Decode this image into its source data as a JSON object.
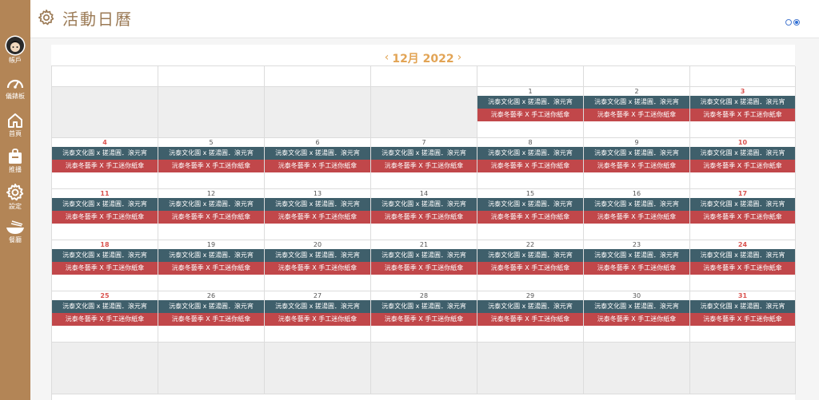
{
  "sidebar": {
    "items": [
      {
        "id": "account",
        "label": "帳戶",
        "icon": "avatar-icon"
      },
      {
        "id": "dashboard",
        "label": "儀錶板",
        "icon": "gauge-icon"
      },
      {
        "id": "home",
        "label": "首頁",
        "icon": "home-icon"
      },
      {
        "id": "promo",
        "label": "推播",
        "icon": "bag-icon"
      },
      {
        "id": "settings",
        "label": "設定",
        "icon": "gear-icon"
      },
      {
        "id": "dining",
        "label": "餐廳",
        "icon": "bowl-icon"
      }
    ]
  },
  "header": {
    "title": "活動日曆",
    "title_icon": "gear-icon",
    "view_toggle": {
      "options": [
        "view-1",
        "view-2"
      ],
      "selected": 1
    }
  },
  "calendar": {
    "month_label": "12月 2022",
    "prev_arrow": "‹",
    "next_arrow": "›",
    "weekend_color": "#d9534f",
    "event_colors": {
      "a": "#3f5f6b",
      "b": "#c1474a"
    },
    "events_per_day": [
      {
        "kind": "a",
        "title": "沅泰文化園 x 搓湯圓．滾元宵"
      },
      {
        "kind": "b",
        "title": "沅泰冬藝季 X 手工迷你紙傘"
      }
    ],
    "weeks": [
      [
        {
          "day": "",
          "empty": true
        },
        {
          "day": "",
          "empty": true
        },
        {
          "day": "",
          "empty": true
        },
        {
          "day": "",
          "empty": true
        },
        {
          "day": "1",
          "weekend": false
        },
        {
          "day": "2",
          "weekend": false
        },
        {
          "day": "3",
          "weekend": true
        }
      ],
      [
        {
          "day": "4",
          "weekend": true
        },
        {
          "day": "5"
        },
        {
          "day": "6"
        },
        {
          "day": "7"
        },
        {
          "day": "8"
        },
        {
          "day": "9"
        },
        {
          "day": "10",
          "weekend": true
        }
      ],
      [
        {
          "day": "11",
          "weekend": true
        },
        {
          "day": "12"
        },
        {
          "day": "13"
        },
        {
          "day": "14"
        },
        {
          "day": "15"
        },
        {
          "day": "16"
        },
        {
          "day": "17",
          "weekend": true
        }
      ],
      [
        {
          "day": "18",
          "weekend": true
        },
        {
          "day": "19"
        },
        {
          "day": "20"
        },
        {
          "day": "21"
        },
        {
          "day": "22"
        },
        {
          "day": "23"
        },
        {
          "day": "24",
          "weekend": true
        }
      ],
      [
        {
          "day": "25",
          "weekend": true
        },
        {
          "day": "26"
        },
        {
          "day": "27"
        },
        {
          "day": "28"
        },
        {
          "day": "29"
        },
        {
          "day": "30"
        },
        {
          "day": "31",
          "weekend": true
        }
      ],
      [
        {
          "day": "",
          "empty": true
        },
        {
          "day": "",
          "empty": true
        },
        {
          "day": "",
          "empty": true
        },
        {
          "day": "",
          "empty": true
        },
        {
          "day": "",
          "empty": true
        },
        {
          "day": "",
          "empty": true
        },
        {
          "day": "",
          "empty": true
        }
      ]
    ]
  }
}
